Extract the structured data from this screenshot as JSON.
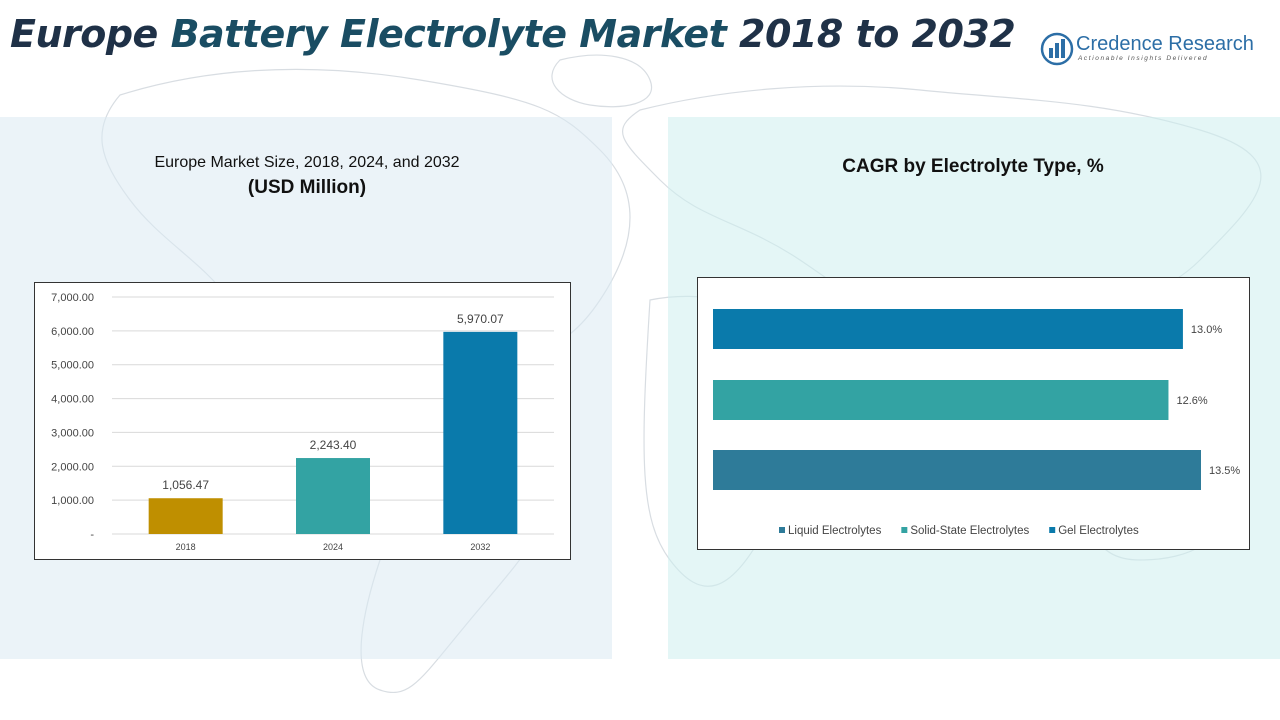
{
  "header": {
    "title_part1": "Europe ",
    "title_part2": "Battery Electrolyte Market",
    "title_part3": " 2018 to 2032"
  },
  "logo": {
    "name": "Credence Research",
    "tagline": "Actionable Insights Delivered"
  },
  "left_chart": {
    "title_line1": "Europe Market Size, 2018, 2024, and 2032",
    "title_line2": "(USD Million)"
  },
  "right_chart": {
    "title": "CAGR by Electrolyte  Type, %"
  },
  "colors": {
    "bar_2018": "#bf8f00",
    "bar_2024": "#33a3a3",
    "bar_2032": "#0a7aab",
    "liquid": "#2e7b99",
    "solid_state": "#33a3a3",
    "gel": "#0a7aab"
  },
  "chart_data": [
    {
      "type": "bar",
      "title": "Europe Market Size, 2018, 2024, and 2032 (USD Million)",
      "categories": [
        "2018",
        "2024",
        "2032"
      ],
      "values": [
        1056.47,
        2243.4,
        5970.07
      ],
      "value_labels": [
        "1,056.47",
        "2,243.40",
        "5,970.07"
      ],
      "ylim": [
        0,
        7000
      ],
      "yticks": [
        0,
        1000,
        2000,
        3000,
        4000,
        5000,
        6000,
        7000
      ],
      "ytick_labels": [
        "-",
        "1,000.00",
        "2,000.00",
        "3,000.00",
        "4,000.00",
        "5,000.00",
        "6,000.00",
        "7,000.00"
      ],
      "grid": true,
      "xlabel": "",
      "ylabel": ""
    },
    {
      "type": "bar",
      "orientation": "horizontal",
      "title": "CAGR by Electrolyte  Type, %",
      "series": [
        {
          "name": "Gel Electrolytes",
          "value": 13.0,
          "label": "13.0%"
        },
        {
          "name": "Solid-State Electrolytes",
          "value": 12.6,
          "label": "12.6%"
        },
        {
          "name": "Liquid Electrolytes",
          "value": 13.5,
          "label": "13.5%"
        }
      ],
      "legend": [
        "Liquid Electrolytes",
        "Solid-State Electrolytes",
        "Gel Electrolytes"
      ],
      "legend_position": "bottom"
    }
  ]
}
